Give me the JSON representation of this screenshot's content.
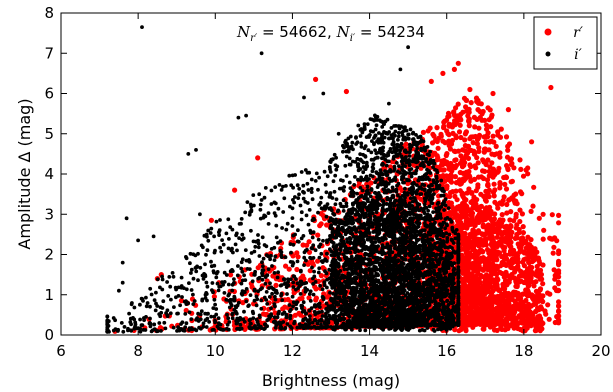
{
  "chart_data": {
    "type": "scatter",
    "xlabel": "Brightness (mag)",
    "ylabel": "Amplitude Δ (mag)",
    "xlim": [
      6,
      20
    ],
    "ylim": [
      0,
      8
    ],
    "xticks": [
      6,
      8,
      10,
      12,
      14,
      16,
      18,
      20
    ],
    "yticks": [
      0,
      1,
      2,
      3,
      4,
      5,
      6,
      7,
      8
    ],
    "grid": false,
    "legend_position": "top-right",
    "annotation": {
      "n_r_symbol": "N",
      "n_r_sub": "r′",
      "n_r_value": " = 54662, ",
      "n_i_symbol": "N",
      "n_i_sub": "i′",
      "n_i_value": " = 54234"
    },
    "series": [
      {
        "name": "r′",
        "color": "#ff0000",
        "count": 54662,
        "envelope": [
          [
            8.0,
            0.25
          ],
          [
            9.0,
            0.9
          ],
          [
            10.0,
            1.3
          ],
          [
            11.0,
            1.8
          ],
          [
            12.0,
            2.5
          ],
          [
            13.0,
            3.3
          ],
          [
            14.0,
            4.0
          ],
          [
            15.0,
            4.8
          ],
          [
            16.0,
            5.5
          ],
          [
            16.5,
            6.0
          ],
          [
            17.0,
            5.8
          ],
          [
            17.5,
            5.0
          ],
          [
            18.0,
            4.5
          ],
          [
            18.5,
            3.0
          ]
        ],
        "points": [
          [
            18.7,
            6.15
          ],
          [
            16.3,
            6.75
          ],
          [
            16.2,
            6.6
          ],
          [
            15.9,
            6.5
          ],
          [
            15.6,
            6.3
          ],
          [
            16.6,
            6.1
          ],
          [
            17.2,
            6.0
          ],
          [
            17.6,
            5.6
          ],
          [
            18.2,
            4.8
          ],
          [
            18.4,
            2.9
          ],
          [
            18.5,
            3.0
          ],
          [
            12.6,
            6.35
          ],
          [
            13.4,
            6.05
          ],
          [
            11.1,
            4.4
          ],
          [
            10.5,
            3.6
          ],
          [
            9.9,
            2.85
          ],
          [
            8.6,
            1.5
          ],
          [
            8.5,
            1.4
          ],
          [
            17.9,
            4.35
          ],
          [
            18.1,
            4.15
          ]
        ]
      },
      {
        "name": "i′",
        "color": "#000000",
        "count": 54234,
        "envelope": [
          [
            7.5,
            0.5
          ],
          [
            8.0,
            1.0
          ],
          [
            9.0,
            1.8
          ],
          [
            10.0,
            2.8
          ],
          [
            11.0,
            3.5
          ],
          [
            12.0,
            4.0
          ],
          [
            13.0,
            4.5
          ],
          [
            14.0,
            5.5
          ],
          [
            15.0,
            5.2
          ],
          [
            15.5,
            4.8
          ],
          [
            16.0,
            3.5
          ],
          [
            16.3,
            2.5
          ]
        ],
        "points": [
          [
            8.1,
            7.65
          ],
          [
            11.2,
            7.0
          ],
          [
            15.0,
            7.15
          ],
          [
            14.8,
            6.6
          ],
          [
            10.8,
            5.45
          ],
          [
            10.6,
            5.4
          ],
          [
            8.0,
            2.35
          ],
          [
            7.6,
            1.8
          ],
          [
            7.7,
            2.9
          ],
          [
            7.5,
            1.1
          ],
          [
            7.2,
            0.3
          ],
          [
            9.3,
            4.5
          ],
          [
            9.6,
            3.0
          ],
          [
            8.4,
            2.45
          ],
          [
            12.3,
            5.9
          ],
          [
            12.8,
            6.0
          ],
          [
            13.2,
            5.0
          ],
          [
            14.5,
            5.75
          ],
          [
            9.5,
            4.6
          ],
          [
            7.6,
            1.3
          ]
        ]
      }
    ]
  }
}
